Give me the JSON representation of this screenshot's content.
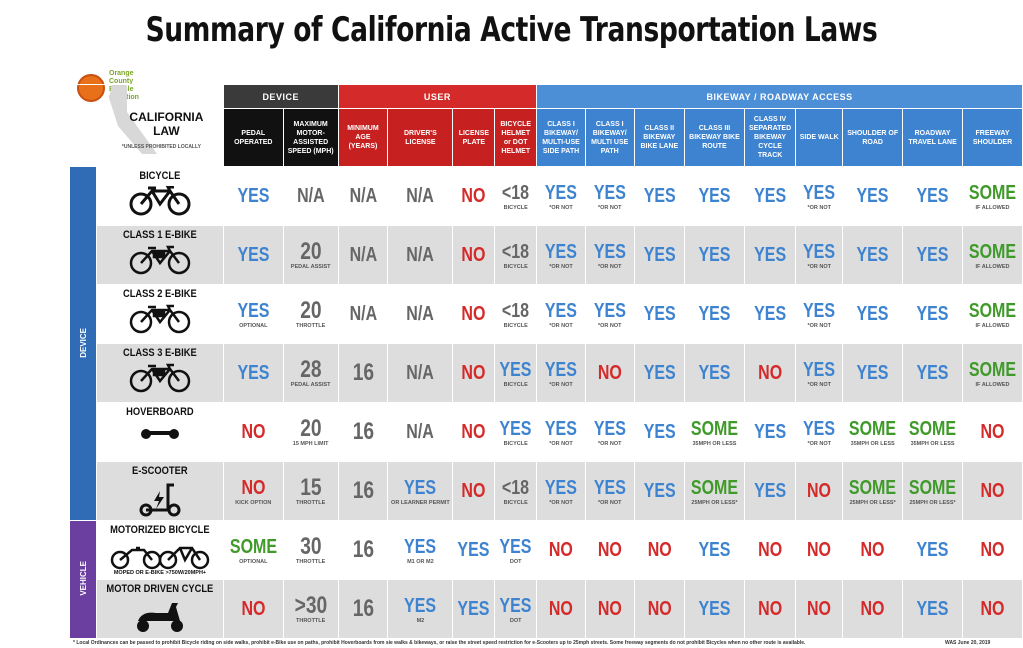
{
  "title": "Summary of California Active Transportation Laws",
  "logo": {
    "line1": "Orange",
    "line2": "County",
    "line3": "Bicycle",
    "line4": "Coalition"
  },
  "corner": {
    "label1": "CALIFORNIA",
    "label2": "LAW",
    "note": "*UNLESS PROHIBITED LOCALLY"
  },
  "groups": {
    "device": "DEVICE",
    "user": "USER",
    "access": "BIKEWAY / ROADWAY ACCESS"
  },
  "columns": [
    "PEDAL OPERATED",
    "MAXIMUM MOTOR-ASSISTED SPEED (MPH)",
    "MINIMUM AGE (YEARS)",
    "DRIVER'S LICENSE",
    "LICENSE PLATE",
    "BICYCLE HELMET or DOT HELMET",
    "CLASS I BIKEWAY/ MULTI-USE SIDE PATH",
    "CLASS I BIKEWAY/ MULTI USE PATH",
    "CLASS II BIKEWAY BIKE LANE",
    "CLASS III BIKEWAY BIKE ROUTE",
    "CLASS IV SEPARATED BIKEWAY CYCLE TRACK",
    "SIDE WALK",
    "SHOULDER OF ROAD",
    "ROADWAY TRAVEL LANE",
    "FREEWAY SHOULDER"
  ],
  "sections": {
    "device": "DEVICE",
    "vehicle": "VEHICLE"
  },
  "rows": [
    {
      "name": "BICYCLE",
      "icon": "bicycle-icon",
      "cells": [
        {
          "v": "YES",
          "c": "yes"
        },
        {
          "v": "N/A",
          "c": "na"
        },
        {
          "v": "N/A",
          "c": "na"
        },
        {
          "v": "N/A",
          "c": "na"
        },
        {
          "v": "NO",
          "c": "no"
        },
        {
          "v": "<18",
          "c": "na",
          "n": "BICYCLE"
        },
        {
          "v": "YES",
          "c": "yes",
          "n": "*OR NOT"
        },
        {
          "v": "YES",
          "c": "yes",
          "n": "*OR NOT"
        },
        {
          "v": "YES",
          "c": "yes"
        },
        {
          "v": "YES",
          "c": "yes"
        },
        {
          "v": "YES",
          "c": "yes"
        },
        {
          "v": "YES",
          "c": "yes",
          "n": "*OR NOT"
        },
        {
          "v": "YES",
          "c": "yes"
        },
        {
          "v": "YES",
          "c": "yes"
        },
        {
          "v": "SOME",
          "c": "some",
          "n": "IF ALLOWED"
        }
      ]
    },
    {
      "name": "CLASS 1 E-BIKE",
      "icon": "ebike-icon",
      "cells": [
        {
          "v": "YES",
          "c": "yes"
        },
        {
          "v": "20",
          "c": "num",
          "n": "PEDAL ASSIST"
        },
        {
          "v": "N/A",
          "c": "na"
        },
        {
          "v": "N/A",
          "c": "na"
        },
        {
          "v": "NO",
          "c": "no"
        },
        {
          "v": "<18",
          "c": "na",
          "n": "BICYCLE"
        },
        {
          "v": "YES",
          "c": "yes",
          "n": "*OR NOT"
        },
        {
          "v": "YES",
          "c": "yes",
          "n": "*OR NOT"
        },
        {
          "v": "YES",
          "c": "yes"
        },
        {
          "v": "YES",
          "c": "yes"
        },
        {
          "v": "YES",
          "c": "yes"
        },
        {
          "v": "YES",
          "c": "yes",
          "n": "*OR NOT"
        },
        {
          "v": "YES",
          "c": "yes"
        },
        {
          "v": "YES",
          "c": "yes"
        },
        {
          "v": "SOME",
          "c": "some",
          "n": "IF ALLOWED"
        }
      ]
    },
    {
      "name": "CLASS 2 E-BIKE",
      "icon": "ebike-icon",
      "cells": [
        {
          "v": "YES",
          "c": "yes",
          "n": "OPTIONAL"
        },
        {
          "v": "20",
          "c": "num",
          "n": "THROTTLE"
        },
        {
          "v": "N/A",
          "c": "na"
        },
        {
          "v": "N/A",
          "c": "na"
        },
        {
          "v": "NO",
          "c": "no"
        },
        {
          "v": "<18",
          "c": "na",
          "n": "BICYCLE"
        },
        {
          "v": "YES",
          "c": "yes",
          "n": "*OR NOT"
        },
        {
          "v": "YES",
          "c": "yes",
          "n": "*OR NOT"
        },
        {
          "v": "YES",
          "c": "yes"
        },
        {
          "v": "YES",
          "c": "yes"
        },
        {
          "v": "YES",
          "c": "yes"
        },
        {
          "v": "YES",
          "c": "yes",
          "n": "*OR NOT"
        },
        {
          "v": "YES",
          "c": "yes"
        },
        {
          "v": "YES",
          "c": "yes"
        },
        {
          "v": "SOME",
          "c": "some",
          "n": "IF ALLOWED"
        }
      ]
    },
    {
      "name": "CLASS 3 E-BIKE",
      "icon": "ebike-icon",
      "cells": [
        {
          "v": "YES",
          "c": "yes"
        },
        {
          "v": "28",
          "c": "num",
          "n": "PEDAL ASSIST"
        },
        {
          "v": "16",
          "c": "num"
        },
        {
          "v": "N/A",
          "c": "na"
        },
        {
          "v": "NO",
          "c": "no"
        },
        {
          "v": "YES",
          "c": "yes",
          "n": "BICYCLE"
        },
        {
          "v": "YES",
          "c": "yes",
          "n": "*OR NOT"
        },
        {
          "v": "NO",
          "c": "no"
        },
        {
          "v": "YES",
          "c": "yes"
        },
        {
          "v": "YES",
          "c": "yes"
        },
        {
          "v": "NO",
          "c": "no"
        },
        {
          "v": "YES",
          "c": "yes",
          "n": "*OR NOT"
        },
        {
          "v": "YES",
          "c": "yes"
        },
        {
          "v": "YES",
          "c": "yes"
        },
        {
          "v": "SOME",
          "c": "some",
          "n": "IF ALLOWED"
        }
      ]
    },
    {
      "name": "HOVERBOARD",
      "icon": "hoverboard-icon",
      "cells": [
        {
          "v": "NO",
          "c": "no"
        },
        {
          "v": "20",
          "c": "num",
          "n": "15 MPH LIMIT"
        },
        {
          "v": "16",
          "c": "num"
        },
        {
          "v": "N/A",
          "c": "na"
        },
        {
          "v": "NO",
          "c": "no"
        },
        {
          "v": "YES",
          "c": "yes",
          "n": "BICYCLE"
        },
        {
          "v": "YES",
          "c": "yes",
          "n": "*OR NOT"
        },
        {
          "v": "YES",
          "c": "yes",
          "n": "*OR NOT"
        },
        {
          "v": "YES",
          "c": "yes"
        },
        {
          "v": "SOME",
          "c": "some",
          "n": "35MPH OR LESS"
        },
        {
          "v": "YES",
          "c": "yes"
        },
        {
          "v": "YES",
          "c": "yes",
          "n": "*OR NOT"
        },
        {
          "v": "SOME",
          "c": "some",
          "n": "35MPH OR LESS"
        },
        {
          "v": "SOME",
          "c": "some",
          "n": "35MPH OR LESS"
        },
        {
          "v": "NO",
          "c": "no"
        }
      ]
    },
    {
      "name": "E-SCOOTER",
      "icon": "scooter-icon",
      "cells": [
        {
          "v": "NO",
          "c": "no",
          "n": "KICK OPTION"
        },
        {
          "v": "15",
          "c": "num",
          "n": "THROTTLE"
        },
        {
          "v": "16",
          "c": "num"
        },
        {
          "v": "YES",
          "c": "yes",
          "n": "or LEARNER PERMIT"
        },
        {
          "v": "NO",
          "c": "no"
        },
        {
          "v": "<18",
          "c": "na",
          "n": "BICYCLE"
        },
        {
          "v": "YES",
          "c": "yes",
          "n": "*OR NOT"
        },
        {
          "v": "YES",
          "c": "yes",
          "n": "*OR NOT"
        },
        {
          "v": "YES",
          "c": "yes"
        },
        {
          "v": "SOME",
          "c": "some",
          "n": "25MPH OR LESS*"
        },
        {
          "v": "YES",
          "c": "yes"
        },
        {
          "v": "NO",
          "c": "no"
        },
        {
          "v": "SOME",
          "c": "some",
          "n": "25MPH OR LESS*"
        },
        {
          "v": "SOME",
          "c": "some",
          "n": "25MPH OR LESS*"
        },
        {
          "v": "NO",
          "c": "no"
        }
      ]
    },
    {
      "name": "MOTORIZED BICYCLE",
      "sub": "Moped or E-BIKE >750w/20mph+",
      "icon": "moped-icon",
      "cells": [
        {
          "v": "SOME",
          "c": "some",
          "n": "OPTIONAL"
        },
        {
          "v": "30",
          "c": "num",
          "n": "THROTTLE"
        },
        {
          "v": "16",
          "c": "num"
        },
        {
          "v": "YES",
          "c": "yes",
          "n": "M1 or M2"
        },
        {
          "v": "YES",
          "c": "yes"
        },
        {
          "v": "YES",
          "c": "yes",
          "n": "DOT"
        },
        {
          "v": "NO",
          "c": "no"
        },
        {
          "v": "NO",
          "c": "no"
        },
        {
          "v": "NO",
          "c": "no"
        },
        {
          "v": "YES",
          "c": "yes"
        },
        {
          "v": "NO",
          "c": "no"
        },
        {
          "v": "NO",
          "c": "no"
        },
        {
          "v": "NO",
          "c": "no"
        },
        {
          "v": "YES",
          "c": "yes"
        },
        {
          "v": "NO",
          "c": "no"
        }
      ]
    },
    {
      "name": "MOTOR DRIVEN CYCLE",
      "icon": "motor-scooter-icon",
      "cells": [
        {
          "v": "NO",
          "c": "no"
        },
        {
          "v": ">30",
          "c": "num",
          "n": "THROTTLE"
        },
        {
          "v": "16",
          "c": "num"
        },
        {
          "v": "YES",
          "c": "yes",
          "n": "M2"
        },
        {
          "v": "YES",
          "c": "yes"
        },
        {
          "v": "YES",
          "c": "yes",
          "n": "DOT"
        },
        {
          "v": "NO",
          "c": "no"
        },
        {
          "v": "NO",
          "c": "no"
        },
        {
          "v": "NO",
          "c": "no"
        },
        {
          "v": "YES",
          "c": "yes"
        },
        {
          "v": "NO",
          "c": "no"
        },
        {
          "v": "NO",
          "c": "no"
        },
        {
          "v": "NO",
          "c": "no"
        },
        {
          "v": "YES",
          "c": "yes"
        },
        {
          "v": "NO",
          "c": "no"
        }
      ]
    }
  ],
  "footnote": "* Local Ordinances can be passed to prohibit Bicycle riding on side walks, prohibit e-Bike use on paths, prohibit Hoverboards from sie walks & bikeways, or raise the street speed restriction for e-Scooters up to 25mph streets. Some freeway segments do not prohibit Bicycles when no other route is available.",
  "credit": "WAS  June 20, 2019"
}
